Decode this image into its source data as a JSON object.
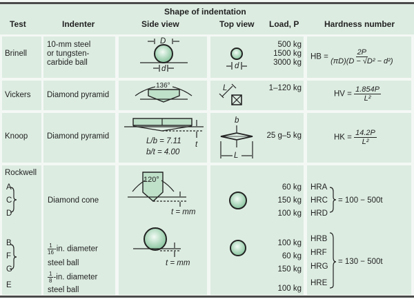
{
  "header": {
    "group": "Shape of indentation",
    "columns": [
      "Test",
      "Indenter",
      "Side view",
      "Top view",
      "Load, P",
      "Hardness number"
    ]
  },
  "rows": {
    "brinell": {
      "test": "Brinell",
      "indenter": [
        "10-mm steel",
        "or tungsten-",
        "carbide ball"
      ],
      "side_labels": {
        "D": "D",
        "d": "d"
      },
      "top_label": "d",
      "loads": [
        "500 kg",
        "1500 kg",
        "3000 kg"
      ],
      "hardness": {
        "lhs": "HB =",
        "num": "2P",
        "den": "(πD)(D − √D² − d²)"
      }
    },
    "vickers": {
      "test": "Vickers",
      "indenter": "Diamond pyramid",
      "angle": "136°",
      "top_label": "L",
      "loads": [
        "1–120 kg"
      ],
      "hardness": {
        "lhs": "HV =",
        "num": "1.854P",
        "den": "L²"
      }
    },
    "knoop": {
      "test": "Knoop",
      "indenter": "Diamond pyramid",
      "ratio1": "L/b = 7.11",
      "ratio2": "b/t = 4.00",
      "t_label": "t",
      "top_b": "b",
      "top_L": "L",
      "loads": [
        "25 g–5 kg"
      ],
      "hardness": {
        "lhs": "HK =",
        "num": "14.2P",
        "den": "L²"
      }
    },
    "rockwell": {
      "test": "Rockwell",
      "scales_cone": [
        "A",
        "C",
        "D"
      ],
      "scales_ball": [
        "B",
        "F",
        "G"
      ],
      "scale_e": "E",
      "indenter_cone": "Diamond cone",
      "indenter_ball16": {
        "num": "1",
        "den": "16",
        "text": "-in. diameter",
        "line2": "steel ball"
      },
      "indenter_ball8": {
        "num": "1",
        "den": "8",
        "text": "-in. diameter",
        "line2": "steel ball"
      },
      "angle": "120°",
      "t_label": "t = mm",
      "loads_cone": [
        "60 kg",
        "150 kg",
        "100 kg"
      ],
      "loads_ball": [
        "100 kg",
        "60 kg",
        "150 kg"
      ],
      "load_e": "100 kg",
      "hard_cone": [
        "HRA",
        "HRC",
        "HRD"
      ],
      "formula_cone": "= 100 − 500t",
      "hard_ball": [
        "HRB",
        "HRF",
        "HRG",
        "HRE"
      ],
      "formula_ball": "= 130 − 500t"
    }
  },
  "colors": {
    "cell": "#dcece1",
    "rule": "#4a4a4a",
    "ball": "#a8d8b8"
  }
}
